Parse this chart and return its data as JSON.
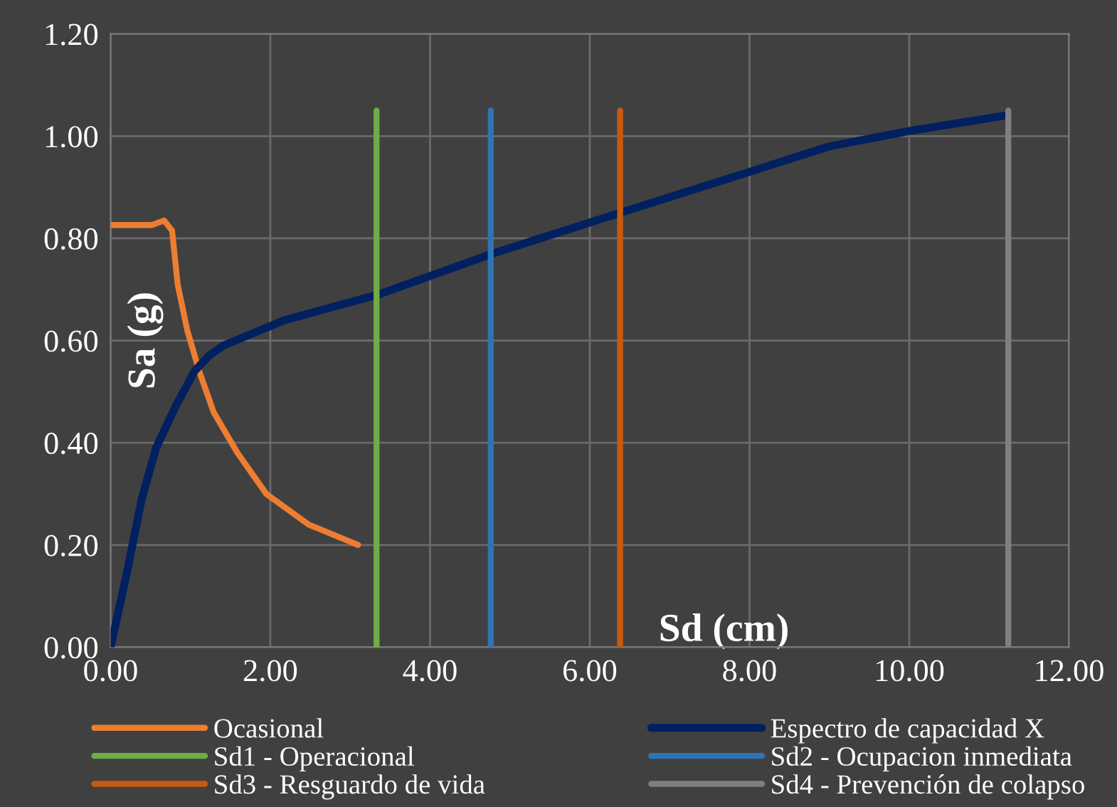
{
  "chart_data": {
    "type": "line",
    "xlabel": "Sd (cm)",
    "ylabel": "Sa (g)",
    "xlim": [
      0,
      12
    ],
    "ylim": [
      0,
      1.2
    ],
    "xticks": [
      {
        "value": 0,
        "label": "0.00"
      },
      {
        "value": 2,
        "label": "2.00"
      },
      {
        "value": 4,
        "label": "4.00"
      },
      {
        "value": 6,
        "label": "6.00"
      },
      {
        "value": 8,
        "label": "8.00"
      },
      {
        "value": 10,
        "label": "10.00"
      },
      {
        "value": 12,
        "label": "12.00"
      }
    ],
    "yticks": [
      {
        "value": 0,
        "label": "0.00"
      },
      {
        "value": 0.2,
        "label": "0.20"
      },
      {
        "value": 0.4,
        "label": "0.40"
      },
      {
        "value": 0.6,
        "label": "0.60"
      },
      {
        "value": 0.8,
        "label": "0.80"
      },
      {
        "value": 1.0,
        "label": "1.00"
      },
      {
        "value": 1.2,
        "label": "1.20"
      }
    ],
    "grid": true,
    "legend": "bottom",
    "marker": "none",
    "line_style": "solid",
    "series": [
      {
        "name": "Ocasional",
        "color": "#ed7d31",
        "x": [
          0,
          0.52,
          0.67,
          0.77,
          0.84,
          0.96,
          1.11,
          1.29,
          1.59,
          1.95,
          2.48,
          3.1
        ],
        "values": [
          0.826,
          0.826,
          0.835,
          0.815,
          0.71,
          0.62,
          0.54,
          0.46,
          0.38,
          0.3,
          0.24,
          0.2
        ]
      },
      {
        "name": "Espectro de capacidad X",
        "color": "#002060",
        "x": [
          0,
          0.21,
          0.39,
          0.57,
          0.81,
          1.05,
          1.23,
          1.41,
          2.18,
          3.35,
          4.78,
          6.38,
          8.0,
          9.0,
          10.0,
          11.2
        ],
        "values": [
          0,
          0.15,
          0.29,
          0.39,
          0.47,
          0.54,
          0.57,
          0.59,
          0.64,
          0.69,
          0.77,
          0.85,
          0.93,
          0.98,
          1.01,
          1.04
        ]
      },
      {
        "name": "Sd1 - Operacional",
        "color": "#70ad47",
        "x": [
          3.33,
          3.33
        ],
        "values": [
          0,
          1.05
        ]
      },
      {
        "name": "Sd2 - Ocupacion inmediata",
        "color": "#2e75b6",
        "x": [
          4.76,
          4.76
        ],
        "values": [
          0,
          1.05
        ]
      },
      {
        "name": "Sd3 - Resguardo de vida",
        "color": "#c55a11",
        "x": [
          6.38,
          6.38
        ],
        "values": [
          0,
          1.05
        ]
      },
      {
        "name": "Sd4 - Prevención de colapso",
        "color": "#7f7f7f",
        "x": [
          11.24,
          11.24
        ],
        "values": [
          0,
          1.05
        ]
      }
    ]
  }
}
